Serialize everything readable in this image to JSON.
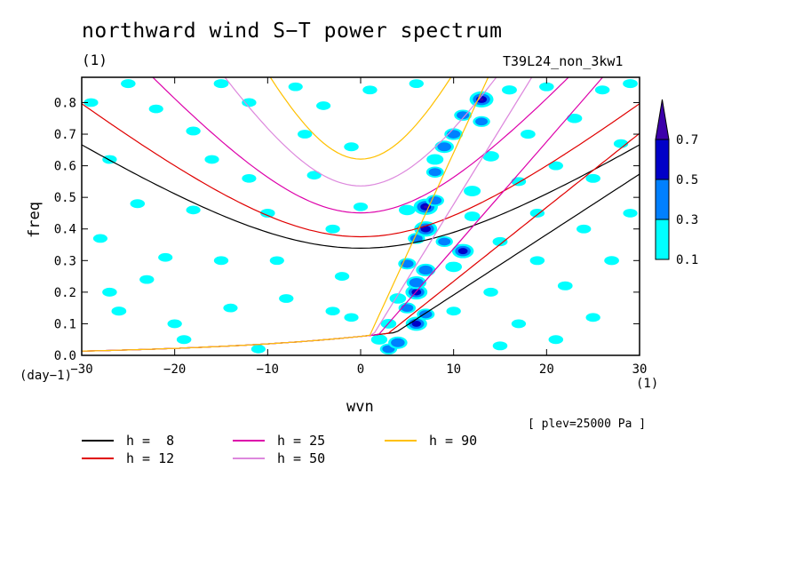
{
  "chart_data": {
    "type": "heatmap",
    "title": "northward wind S−T power spectrum",
    "subtitle_left": "(1)",
    "subtitle_right": "T39L24_non_3kw1",
    "xlabel": "wvn",
    "ylabel": "freq",
    "x_unit": "(1)",
    "y_unit": "(day−1)",
    "annotation": "[ plev=25000 Pa ]",
    "xlim": [
      -30,
      30
    ],
    "ylim": [
      0,
      0.88
    ],
    "x_ticks": [
      -30,
      -20,
      -10,
      0,
      10,
      20,
      30
    ],
    "y_ticks": [
      0.0,
      0.1,
      0.2,
      0.3,
      0.4,
      0.5,
      0.6,
      0.7,
      0.8
    ],
    "colorbar": {
      "levels": [
        0.1,
        0.3,
        0.5,
        0.7
      ],
      "colors": [
        "#00ffff",
        "#0080ff",
        "#0000c8",
        "#3c00aa"
      ]
    },
    "curves": [
      {
        "label": "h =  8",
        "h": 8,
        "color": "#000000"
      },
      {
        "label": "h = 12",
        "h": 12,
        "color": "#e00000"
      },
      {
        "label": "h = 25",
        "h": 25,
        "color": "#dd00aa"
      },
      {
        "label": "h = 50",
        "h": 50,
        "color": "#dd88dd"
      },
      {
        "label": "h = 90",
        "h": 90,
        "color": "#ffc000"
      }
    ],
    "blobs": [
      [
        -29,
        0.8,
        0.12
      ],
      [
        -27,
        0.62,
        0.13
      ],
      [
        -28,
        0.37,
        0.12
      ],
      [
        -27,
        0.2,
        0.14
      ],
      [
        -26,
        0.14,
        0.15
      ],
      [
        -22,
        0.78,
        0.12
      ],
      [
        -24,
        0.48,
        0.14
      ],
      [
        -23,
        0.24,
        0.13
      ],
      [
        -21,
        0.31,
        0.12
      ],
      [
        -19,
        0.05,
        0.14
      ],
      [
        -18,
        0.71,
        0.13
      ],
      [
        -18,
        0.46,
        0.12
      ],
      [
        -16,
        0.62,
        0.12
      ],
      [
        -15,
        0.3,
        0.13
      ],
      [
        -14,
        0.15,
        0.12
      ],
      [
        -12,
        0.8,
        0.13
      ],
      [
        -12,
        0.56,
        0.12
      ],
      [
        -10,
        0.45,
        0.14
      ],
      [
        -9,
        0.3,
        0.12
      ],
      [
        -8,
        0.18,
        0.13
      ],
      [
        -11,
        0.02,
        0.12
      ],
      [
        -6,
        0.7,
        0.13
      ],
      [
        -5,
        0.57,
        0.12
      ],
      [
        -4,
        0.79,
        0.12
      ],
      [
        -3,
        0.4,
        0.13
      ],
      [
        -3,
        0.14,
        0.12
      ],
      [
        -2,
        0.25,
        0.13
      ],
      [
        -1,
        0.66,
        0.14
      ],
      [
        0,
        0.47,
        0.12
      ],
      [
        1,
        0.84,
        0.13
      ],
      [
        2,
        0.05,
        0.24
      ],
      [
        3,
        0.02,
        0.3
      ],
      [
        3,
        0.1,
        0.2
      ],
      [
        4,
        0.18,
        0.26
      ],
      [
        4,
        0.04,
        0.42
      ],
      [
        5,
        0.15,
        0.3
      ],
      [
        5,
        0.29,
        0.34
      ],
      [
        5,
        0.46,
        0.26
      ],
      [
        6,
        0.1,
        0.56
      ],
      [
        6,
        0.2,
        0.6
      ],
      [
        6,
        0.23,
        0.46
      ],
      [
        6,
        0.37,
        0.3
      ],
      [
        7,
        0.13,
        0.34
      ],
      [
        7,
        0.27,
        0.44
      ],
      [
        7,
        0.4,
        0.66
      ],
      [
        7,
        0.47,
        0.74
      ],
      [
        8,
        0.49,
        0.36
      ],
      [
        8,
        0.58,
        0.32
      ],
      [
        8,
        0.62,
        0.28
      ],
      [
        9,
        0.66,
        0.42
      ],
      [
        9,
        0.36,
        0.3
      ],
      [
        10,
        0.7,
        0.38
      ],
      [
        10,
        0.28,
        0.26
      ],
      [
        11,
        0.33,
        0.58
      ],
      [
        11,
        0.76,
        0.32
      ],
      [
        12,
        0.52,
        0.28
      ],
      [
        12,
        0.44,
        0.2
      ],
      [
        13,
        0.74,
        0.3
      ],
      [
        13,
        0.81,
        0.72
      ],
      [
        14,
        0.63,
        0.26
      ],
      [
        14,
        0.2,
        0.14
      ],
      [
        15,
        0.36,
        0.16
      ],
      [
        16,
        0.84,
        0.16
      ],
      [
        17,
        0.55,
        0.14
      ],
      [
        17,
        0.1,
        0.13
      ],
      [
        18,
        0.7,
        0.15
      ],
      [
        19,
        0.3,
        0.14
      ],
      [
        19,
        0.45,
        0.13
      ],
      [
        20,
        0.85,
        0.14
      ],
      [
        21,
        0.6,
        0.13
      ],
      [
        21,
        0.05,
        0.14
      ],
      [
        22,
        0.22,
        0.15
      ],
      [
        23,
        0.75,
        0.18
      ],
      [
        24,
        0.4,
        0.13
      ],
      [
        25,
        0.56,
        0.14
      ],
      [
        25,
        0.12,
        0.13
      ],
      [
        26,
        0.84,
        0.14
      ],
      [
        27,
        0.3,
        0.15
      ],
      [
        28,
        0.67,
        0.13
      ],
      [
        29,
        0.45,
        0.12
      ],
      [
        29,
        0.86,
        0.15
      ],
      [
        -25,
        0.86,
        0.14
      ],
      [
        -15,
        0.86,
        0.15
      ],
      [
        -7,
        0.85,
        0.12
      ],
      [
        6,
        0.86,
        0.13
      ],
      [
        -20,
        0.1,
        0.13
      ],
      [
        -1,
        0.12,
        0.12
      ],
      [
        15,
        0.03,
        0.14
      ],
      [
        10,
        0.14,
        0.13
      ]
    ]
  },
  "legend_items": [
    "h =  8",
    "h = 12",
    "h = 25",
    "h = 50",
    "h = 90"
  ]
}
